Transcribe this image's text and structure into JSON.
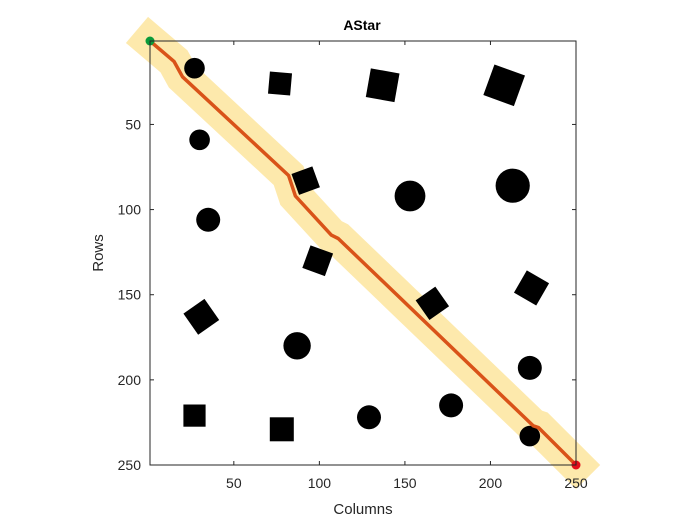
{
  "chart_data": {
    "type": "path-planning-map",
    "title": "AStar",
    "xlabel": "Columns",
    "ylabel": "Rows",
    "xlim": [
      1,
      250
    ],
    "ylim": [
      1,
      250
    ],
    "y_axis_reversed": true,
    "x_ticks": [
      50,
      100,
      150,
      200,
      250
    ],
    "y_ticks": [
      50,
      100,
      150,
      200,
      250
    ],
    "grid": false,
    "colors": {
      "obstacle": "#000000",
      "free_space": "#ffffff",
      "explored": "#fde8a8",
      "path": "#d95319",
      "start": "#0a9a3a",
      "goal": "#e3101c"
    },
    "start": {
      "col": 1,
      "row": 1
    },
    "goal": {
      "col": 250,
      "row": 250
    },
    "path": [
      {
        "col": 1,
        "row": 1
      },
      {
        "col": 15,
        "row": 13
      },
      {
        "col": 20,
        "row": 22
      },
      {
        "col": 82,
        "row": 80
      },
      {
        "col": 86,
        "row": 92
      },
      {
        "col": 107,
        "row": 115
      },
      {
        "col": 111,
        "row": 117
      },
      {
        "col": 225,
        "row": 227
      },
      {
        "col": 228,
        "row": 228
      },
      {
        "col": 250,
        "row": 250
      }
    ],
    "explored_halfwidth": 10,
    "obstacles": [
      {
        "shape": "circle",
        "col": 27,
        "row": 17,
        "r": 6
      },
      {
        "shape": "square",
        "col": 77,
        "row": 26,
        "size": 13,
        "angle": 5
      },
      {
        "shape": "square",
        "col": 137,
        "row": 27,
        "size": 17,
        "angle": 10
      },
      {
        "shape": "square",
        "col": 208,
        "row": 27,
        "size": 19,
        "angle": 20
      },
      {
        "shape": "circle",
        "col": 30,
        "row": 59,
        "r": 6
      },
      {
        "shape": "square",
        "col": 92,
        "row": 83,
        "size": 13,
        "angle": -20
      },
      {
        "shape": "circle",
        "col": 153,
        "row": 92,
        "r": 9
      },
      {
        "shape": "circle",
        "col": 213,
        "row": 86,
        "r": 10
      },
      {
        "shape": "circle",
        "col": 35,
        "row": 106,
        "r": 7
      },
      {
        "shape": "square",
        "col": 99,
        "row": 130,
        "size": 14,
        "angle": 20
      },
      {
        "shape": "square",
        "col": 166,
        "row": 155,
        "size": 14,
        "angle": -35
      },
      {
        "shape": "square",
        "col": 224,
        "row": 146,
        "size": 15,
        "angle": 30
      },
      {
        "shape": "square",
        "col": 31,
        "row": 163,
        "size": 15,
        "angle": -35
      },
      {
        "shape": "circle",
        "col": 87,
        "row": 180,
        "r": 8
      },
      {
        "shape": "circle",
        "col": 223,
        "row": 193,
        "r": 7
      },
      {
        "shape": "square",
        "col": 27,
        "row": 221,
        "size": 13,
        "angle": 0
      },
      {
        "shape": "square",
        "col": 78,
        "row": 229,
        "size": 14,
        "angle": 0
      },
      {
        "shape": "circle",
        "col": 129,
        "row": 222,
        "r": 7
      },
      {
        "shape": "circle",
        "col": 177,
        "row": 215,
        "r": 7
      },
      {
        "shape": "circle",
        "col": 223,
        "row": 233,
        "r": 6
      }
    ]
  }
}
